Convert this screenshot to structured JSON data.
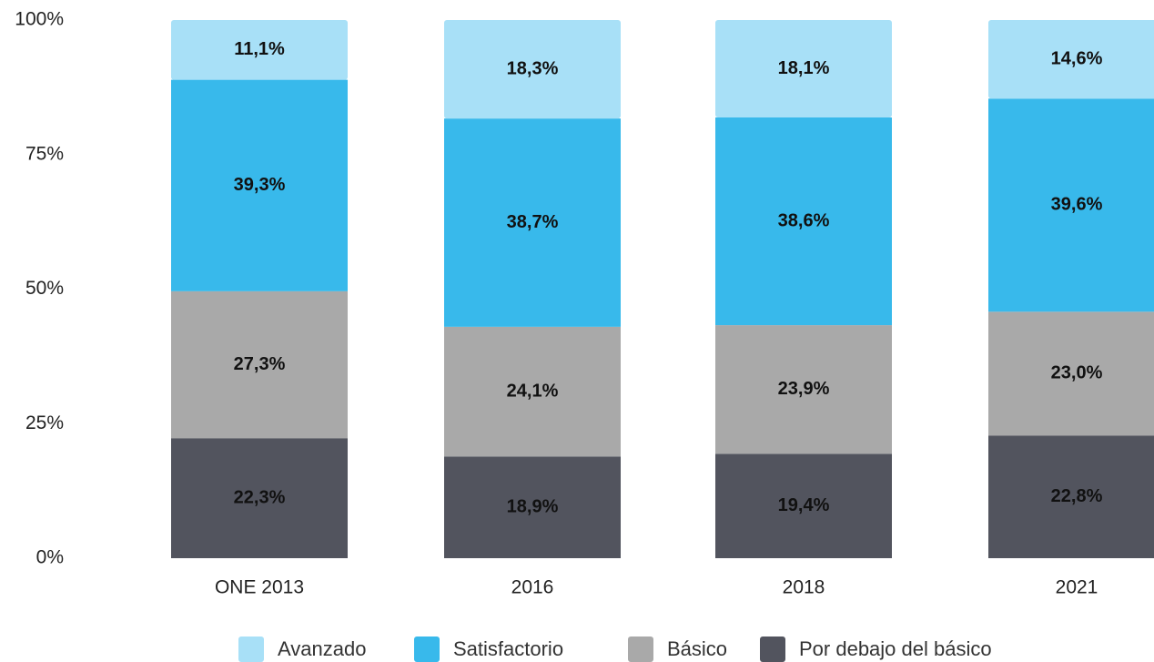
{
  "chart_data": {
    "type": "stacked_bar",
    "categories": [
      "ONE 2013",
      "2016",
      "2018",
      "2021"
    ],
    "series": [
      {
        "name": "Avanzado",
        "color": "#a8e0f7",
        "values": [
          11.1,
          18.3,
          18.1,
          14.6
        ],
        "value_labels": [
          "11,1%",
          "18,3%",
          "18,1%",
          "14,6%"
        ]
      },
      {
        "name": "Satisfactorio",
        "color": "#38b9eb",
        "values": [
          39.3,
          38.7,
          38.6,
          39.6
        ],
        "value_labels": [
          "39,3%",
          "38,7%",
          "38,6%",
          "39,6%"
        ]
      },
      {
        "name": "Básico",
        "color": "#a9a9a9",
        "values": [
          27.3,
          24.1,
          23.9,
          23.0
        ],
        "value_labels": [
          "27,3%",
          "24,1%",
          "23,9%",
          "23,0%"
        ]
      },
      {
        "name": "Por debajo del básico",
        "color": "#52545e",
        "values": [
          22.3,
          18.9,
          19.4,
          22.8
        ],
        "value_labels": [
          "22,3%",
          "18,9%",
          "19,4%",
          "22,8%"
        ]
      }
    ],
    "ylim": [
      0,
      100
    ],
    "yticks": [
      {
        "value": 0,
        "label": "0%"
      },
      {
        "value": 25,
        "label": "25%"
      },
      {
        "value": 50,
        "label": "50%"
      },
      {
        "value": 75,
        "label": "75%"
      },
      {
        "value": 100,
        "label": "100%"
      }
    ],
    "grid": false,
    "legend": "bottom"
  }
}
